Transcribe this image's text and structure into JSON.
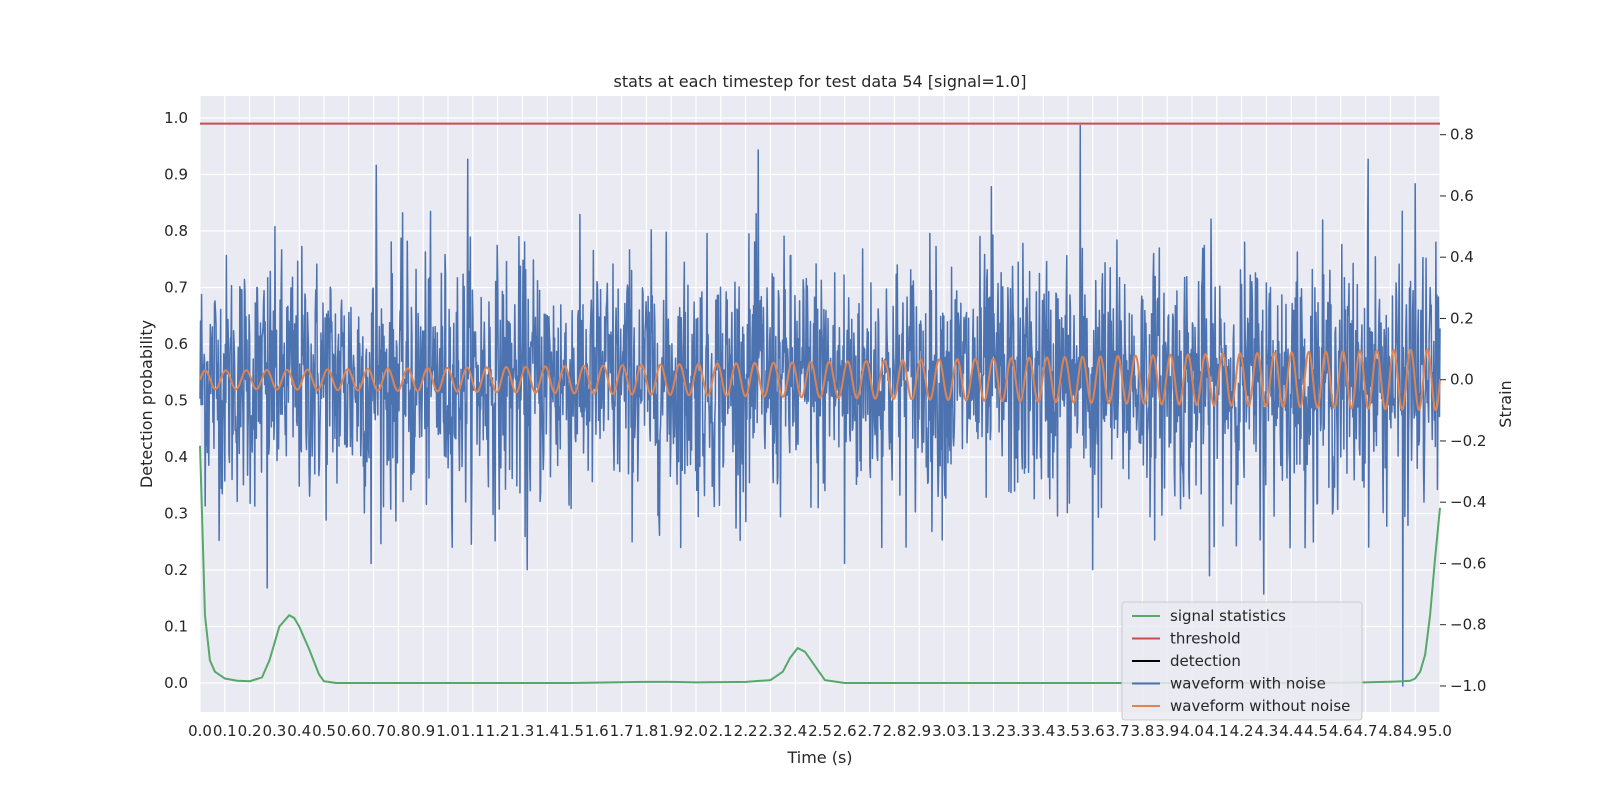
{
  "chart_data": {
    "type": "line",
    "title": "stats at each timestep for test data 54 [signal=1.0]",
    "xlabel": "Time (s)",
    "ylabel": "Detection probability",
    "ylabel_right": "Strain",
    "xlim": [
      0.0,
      5.0
    ],
    "ylim": [
      0.0,
      1.0
    ],
    "ylim_right": [
      -1.0,
      0.8
    ],
    "x_ticks": [
      "0.0",
      "0.1",
      "0.2",
      "0.3",
      "0.4",
      "0.5",
      "0.6",
      "0.7",
      "0.8",
      "0.9",
      "1.0",
      "1.1",
      "1.2",
      "1.3",
      "1.4",
      "1.5",
      "1.6",
      "1.7",
      "1.8",
      "1.9",
      "2.0",
      "2.1",
      "2.2",
      "2.3",
      "2.4",
      "2.5",
      "2.6",
      "2.7",
      "2.8",
      "2.9",
      "3.0",
      "3.1",
      "3.2",
      "3.3",
      "3.4",
      "3.5",
      "3.6",
      "3.7",
      "3.8",
      "3.9",
      "4.0",
      "4.1",
      "4.2",
      "4.3",
      "4.4",
      "4.5",
      "4.6",
      "4.7",
      "4.8",
      "4.9",
      "5.0"
    ],
    "y_ticks_left": [
      "0.0",
      "0.1",
      "0.2",
      "0.3",
      "0.4",
      "0.5",
      "0.6",
      "0.7",
      "0.8",
      "0.9",
      "1.0"
    ],
    "y_ticks_right": [
      "−1.0",
      "−0.8",
      "−0.6",
      "−0.4",
      "−0.2",
      "0.0",
      "0.2",
      "0.4",
      "0.6",
      "0.8"
    ],
    "grid": true,
    "legend_position": "bottom-right",
    "colors": {
      "signal_statistics": "#55a868",
      "threshold": "#c44e52",
      "detection": "#000000",
      "waveform_with_noise": "#4c72b0",
      "waveform_without_noise": "#dd8452",
      "plot_background": "#eaeaf2"
    },
    "series": [
      {
        "name": "signal statistics",
        "axis": "left",
        "x": [
          0.0,
          0.02,
          0.04,
          0.06,
          0.1,
          0.15,
          0.2,
          0.25,
          0.28,
          0.32,
          0.36,
          0.38,
          0.4,
          0.44,
          0.48,
          0.5,
          0.55,
          1.0,
          1.5,
          1.8,
          1.9,
          2.0,
          2.2,
          2.3,
          2.35,
          2.38,
          2.41,
          2.44,
          2.48,
          2.52,
          2.6,
          3.0,
          4.0,
          4.5,
          4.7,
          4.85,
          4.88,
          4.9,
          4.92,
          4.94,
          4.96,
          4.98,
          5.0
        ],
        "values": [
          0.42,
          0.12,
          0.04,
          0.02,
          0.008,
          0.004,
          0.003,
          0.01,
          0.04,
          0.1,
          0.12,
          0.115,
          0.1,
          0.06,
          0.015,
          0.003,
          0.0,
          0.0,
          0.0,
          0.002,
          0.002,
          0.001,
          0.002,
          0.005,
          0.02,
          0.045,
          0.062,
          0.055,
          0.03,
          0.005,
          0.0,
          0.0,
          0.0,
          0.0,
          0.001,
          0.003,
          0.004,
          0.008,
          0.02,
          0.05,
          0.12,
          0.22,
          0.31
        ]
      },
      {
        "name": "threshold",
        "axis": "left",
        "x": [
          0.0,
          5.0
        ],
        "values": [
          0.99,
          0.99
        ]
      },
      {
        "name": "detection",
        "axis": "left",
        "x": [],
        "values": []
      },
      {
        "name": "waveform with noise",
        "axis": "right",
        "noise_std": 0.2,
        "peaks": [
          {
            "x": 3.55,
            "y": 0.83
          },
          {
            "x": 2.25,
            "y": 0.75
          },
          {
            "x": 4.71,
            "y": 0.72
          },
          {
            "x": 1.08,
            "y": 0.72
          },
          {
            "x": 0.71,
            "y": 0.7
          },
          {
            "x": 4.9,
            "y": 0.64
          },
          {
            "x": 3.19,
            "y": 0.63
          },
          {
            "x": 0.27,
            "y": -0.68
          },
          {
            "x": 1.32,
            "y": -0.62
          },
          {
            "x": 4.29,
            "y": -0.7
          },
          {
            "x": 4.85,
            "y": -1.0
          },
          {
            "x": 4.07,
            "y": -0.64
          },
          {
            "x": 3.6,
            "y": -0.62
          },
          {
            "x": 2.6,
            "y": -0.6
          },
          {
            "x": 0.69,
            "y": -0.6
          }
        ]
      },
      {
        "name": "waveform without noise",
        "axis": "right",
        "amplitude_start": 0.03,
        "amplitude_end": 0.1,
        "cycles_per_second_start": 12,
        "cycles_per_second_end": 14.8
      }
    ]
  }
}
